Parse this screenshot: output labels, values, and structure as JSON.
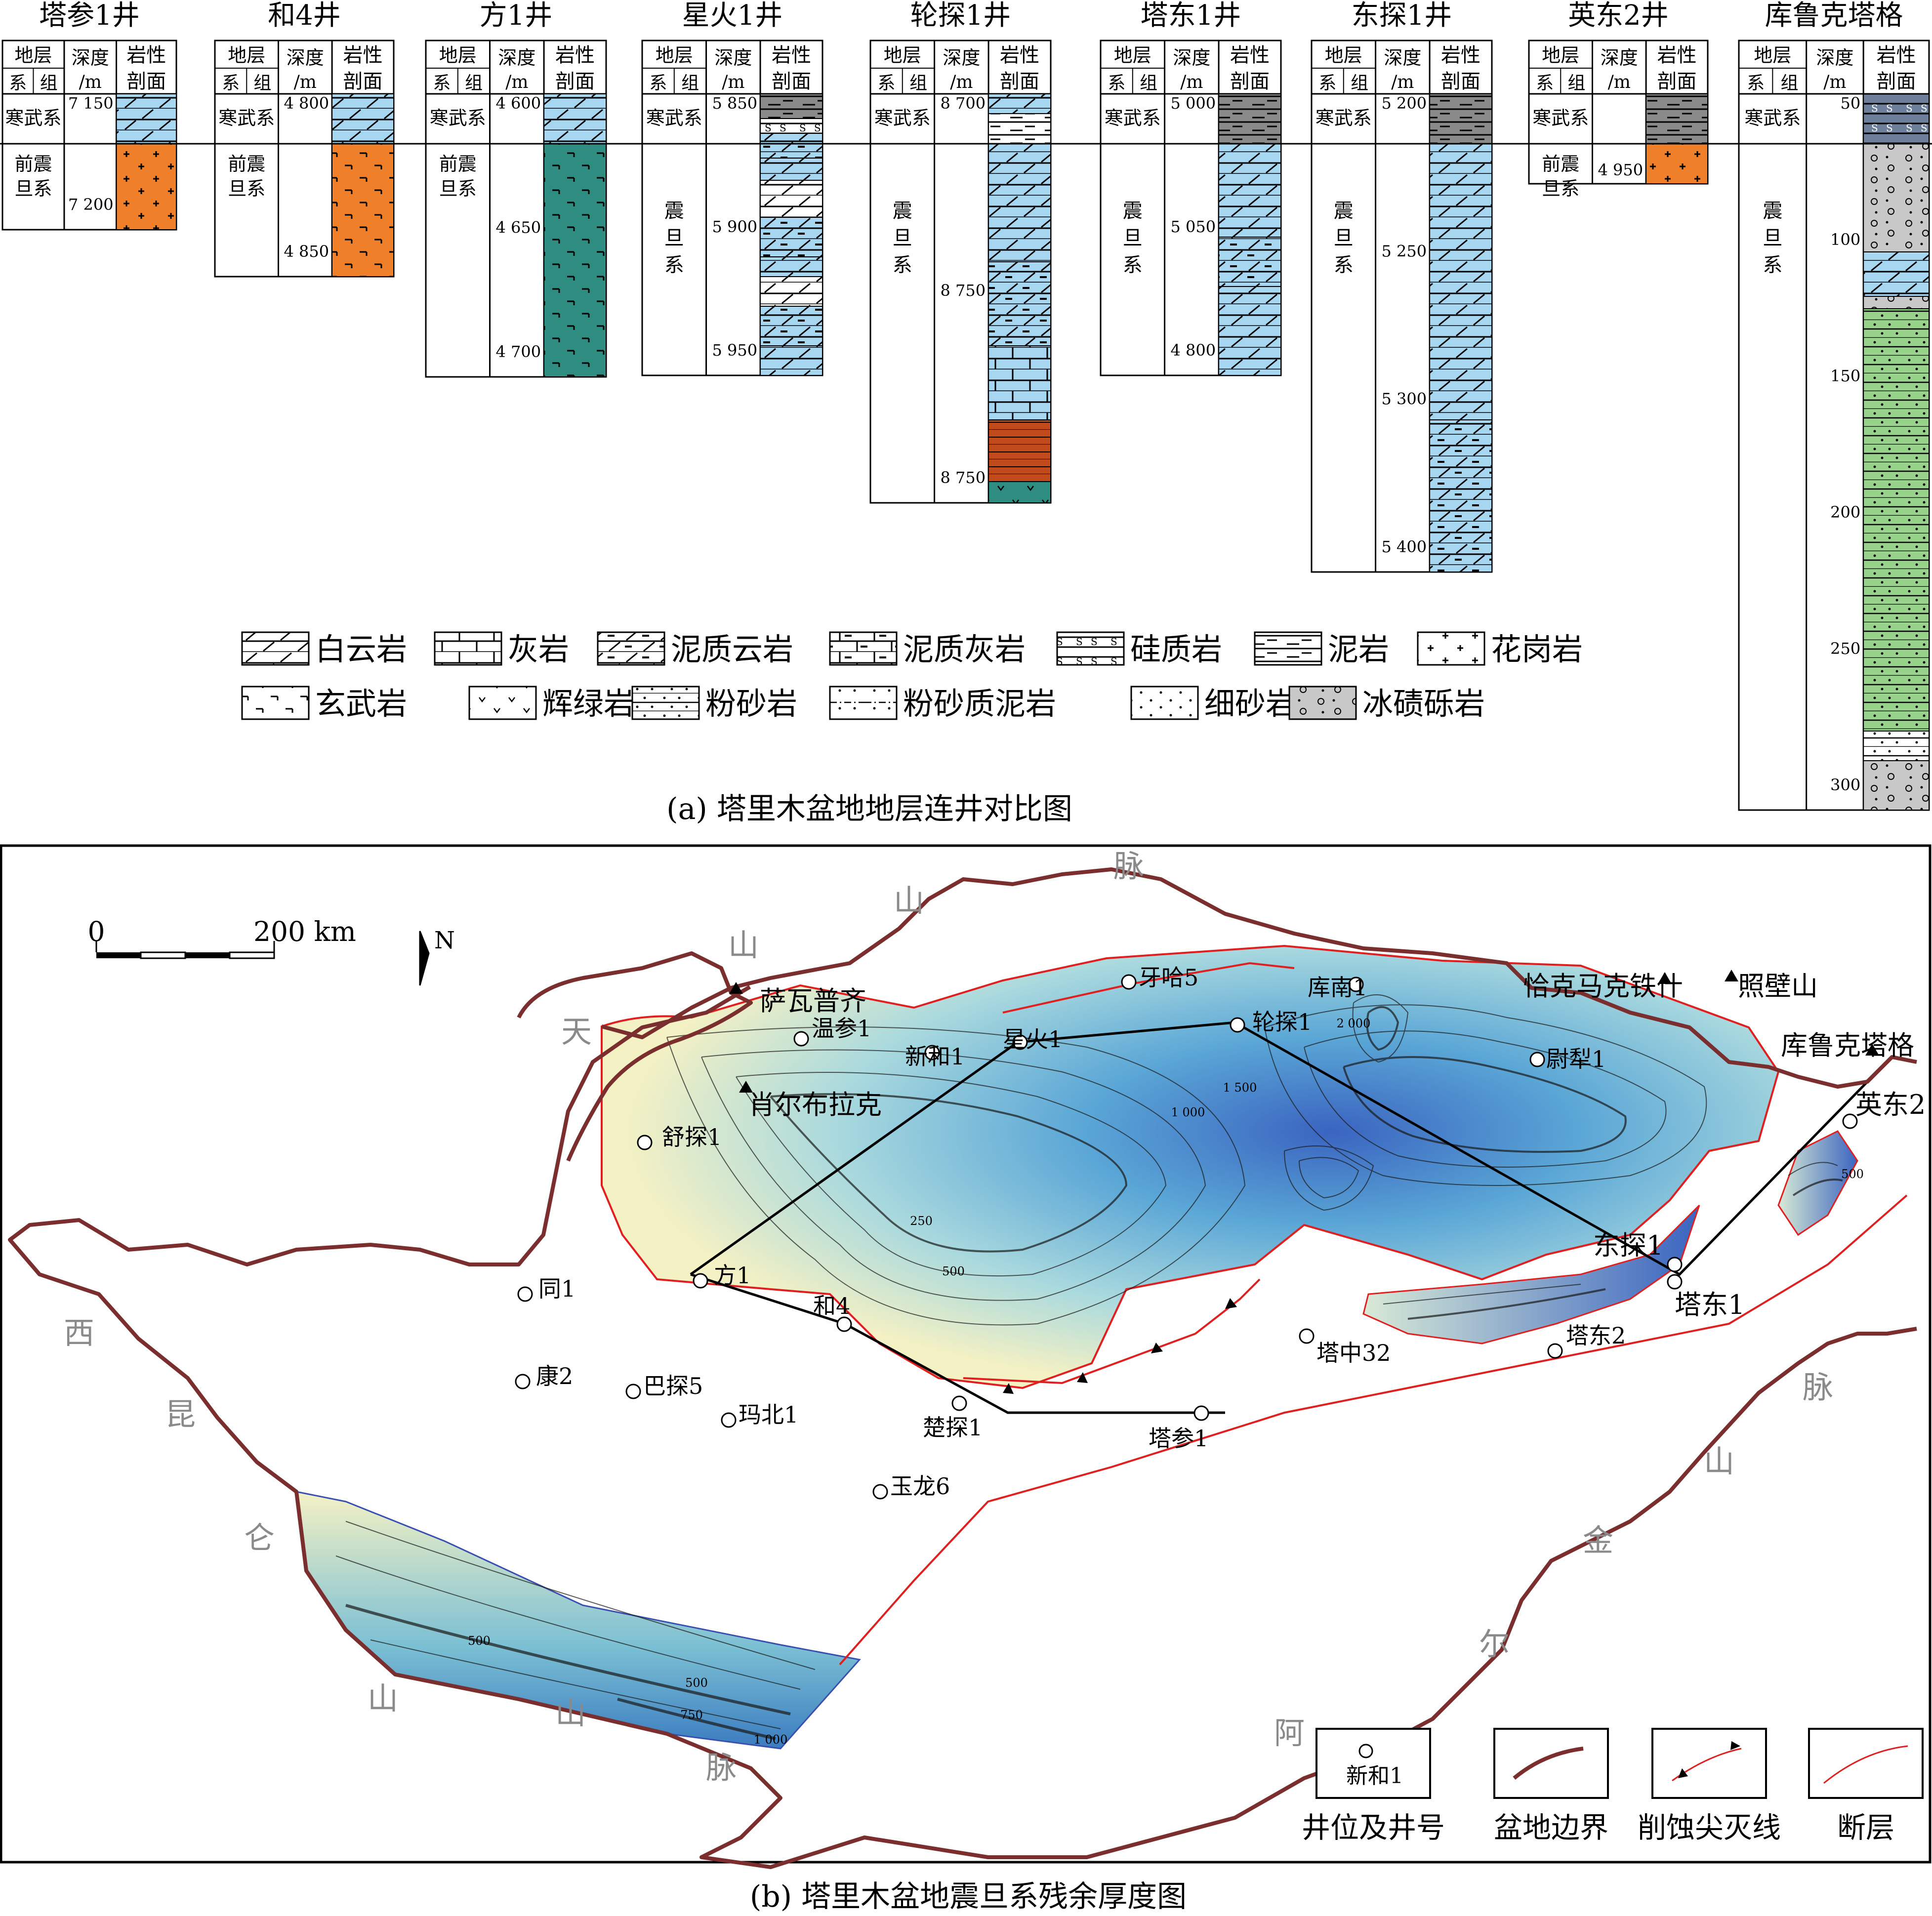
{
  "panel_a": {
    "caption": "(a) 塔里木盆地地层连井对比图",
    "header": {
      "stratum": "地层",
      "system": "系",
      "formation": "组",
      "depth": "深度",
      "depth_unit": "/m",
      "lith1": "岩性",
      "lith2": "剖面"
    },
    "wells": [
      {
        "name": "塔参1井",
        "upper": "寒武系",
        "lower": "前震旦系",
        "depths": [
          "7 150",
          "7 200"
        ]
      },
      {
        "name": "和4井",
        "upper": "寒武系",
        "lower": "前震旦系",
        "depths": [
          "4 800",
          "4 850"
        ]
      },
      {
        "name": "方1井",
        "upper": "寒武系",
        "lower": "前震旦系",
        "depths": [
          "4 600",
          "4 650",
          "4 700"
        ]
      },
      {
        "name": "星火1井",
        "upper": "寒武系",
        "lower": "震旦系",
        "depths": [
          "5 850",
          "5 900",
          "5 950"
        ]
      },
      {
        "name": "轮探1井",
        "upper": "寒武系",
        "lower": "震旦系",
        "depths": [
          "8 700",
          "8 750",
          "8 750"
        ]
      },
      {
        "name": "塔东1井",
        "upper": "寒武系",
        "lower": "震旦系",
        "depths": [
          "5 000",
          "5 050",
          "4 800"
        ]
      },
      {
        "name": "东探1井",
        "upper": "寒武系",
        "lower": "震旦系",
        "depths": [
          "5 200",
          "5 250",
          "5 300",
          "5 400"
        ]
      },
      {
        "name": "英东2井",
        "upper": "寒武系",
        "lower": "前震旦系",
        "depths": [
          "4 950"
        ]
      },
      {
        "name": "库鲁克塔格",
        "upper": "寒武系",
        "lower": "震旦系",
        "depths": [
          "50",
          "100",
          "150",
          "200",
          "250",
          "300"
        ]
      }
    ],
    "legend": [
      {
        "label": "白云岩",
        "pattern": "dolomite"
      },
      {
        "label": "灰岩",
        "pattern": "limestone"
      },
      {
        "label": "泥质云岩",
        "pattern": "argillaceous-dolomite"
      },
      {
        "label": "泥质灰岩",
        "pattern": "argillaceous-limestone"
      },
      {
        "label": "硅质岩",
        "pattern": "siliceous"
      },
      {
        "label": "泥岩",
        "pattern": "mudstone"
      },
      {
        "label": "花岗岩",
        "pattern": "granite"
      },
      {
        "label": "玄武岩",
        "pattern": "basalt"
      },
      {
        "label": "辉绿岩",
        "pattern": "diabase"
      },
      {
        "label": "粉砂岩",
        "pattern": "siltstone"
      },
      {
        "label": "粉砂质泥岩",
        "pattern": "silty-mudstone"
      },
      {
        "label": "细砂岩",
        "pattern": "fine-sandstone"
      },
      {
        "label": "冰碛砾岩",
        "pattern": "tillite"
      }
    ],
    "colors": {
      "cambrian_dolomite": "#a6d6f0",
      "granite": "#f07f2a",
      "basalt": "#2e8c80",
      "green_siltstone": "#98d38c",
      "tillite": "#c8c8c8",
      "mud": "#808080",
      "brick": "#c04a1c"
    }
  },
  "panel_b": {
    "caption": "(b) 塔里木盆地震旦系残余厚度图",
    "scale": {
      "zero": "0",
      "label": "200 km"
    },
    "north": "N",
    "mountains": [
      {
        "text": "天",
        "id": "tian"
      },
      {
        "text": "山",
        "id": "shan1"
      },
      {
        "text": "山",
        "id": "shan2"
      },
      {
        "text": "脉",
        "id": "mai1"
      },
      {
        "text": "西",
        "id": "xi"
      },
      {
        "text": "昆",
        "id": "kun"
      },
      {
        "text": "仑",
        "id": "lun"
      },
      {
        "text": "山",
        "id": "shan3"
      },
      {
        "text": "山",
        "id": "shan4"
      },
      {
        "text": "脉",
        "id": "mai2"
      },
      {
        "text": "阿",
        "id": "a"
      },
      {
        "text": "尔",
        "id": "er"
      },
      {
        "text": "金",
        "id": "jin"
      },
      {
        "text": "山",
        "id": "shan5"
      },
      {
        "text": "脉",
        "id": "mai3"
      }
    ],
    "outcrops": [
      "萨瓦普齐",
      "肖尔布拉克",
      "恰克马克铁什",
      "照壁山",
      "库鲁克塔格"
    ],
    "wells": [
      "温参1",
      "新和1",
      "星火1",
      "牙哈5",
      "库南1",
      "轮探1",
      "尉犁1",
      "英东2",
      "东探1",
      "塔东1",
      "塔东2",
      "塔中32",
      "舒探1",
      "方1",
      "和4",
      "同1",
      "康2",
      "巴探5",
      "玛北1",
      "楚探1",
      "塔参1",
      "玉龙6"
    ],
    "contours": [
      "250",
      "500",
      "750",
      "1 000",
      "1 500",
      "2 000"
    ],
    "legend": [
      {
        "sample": "新和1",
        "label": "井位及井号"
      },
      {
        "label": "盆地边界"
      },
      {
        "label": "削蚀尖灭线"
      },
      {
        "label": "断层"
      }
    ],
    "colors": {
      "boundary": "#7a2e2e",
      "fault": "#e02020",
      "thick": "#3a64c0",
      "mid": "#6bb8d8",
      "thin": "#f4f1c4"
    }
  }
}
